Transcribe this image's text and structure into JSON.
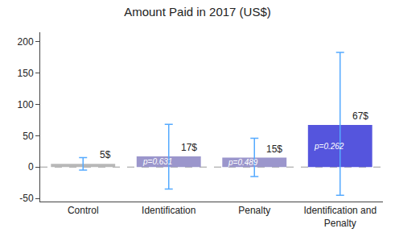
{
  "chart_data": {
    "type": "bar",
    "title": "Amount Paid in 2017 (US$)",
    "categories": [
      "Control",
      "Identification",
      "Penalty",
      "Identification and\nPenalty"
    ],
    "values": [
      5,
      17,
      15,
      67
    ],
    "value_labels": [
      "5$",
      "17$",
      "15$",
      "67$"
    ],
    "data_labels": true,
    "colors": [
      "#b8b8b8",
      "#9b96cc",
      "#9b96cc",
      "#5555dd"
    ],
    "ci_lower": [
      -5,
      -35,
      -15,
      -45
    ],
    "ci_upper": [
      15,
      68,
      46,
      183
    ],
    "error_color": "#55aaff",
    "p_values": [
      null,
      "p=0.631",
      "p=0.489",
      "p=0.262"
    ],
    "reference_line": {
      "value": 0,
      "color": "#999999",
      "line_style": "dashed"
    },
    "ylim": [
      -55,
      215
    ],
    "yticks": [
      -50,
      0,
      50,
      100,
      150,
      200
    ],
    "grid": false
  }
}
